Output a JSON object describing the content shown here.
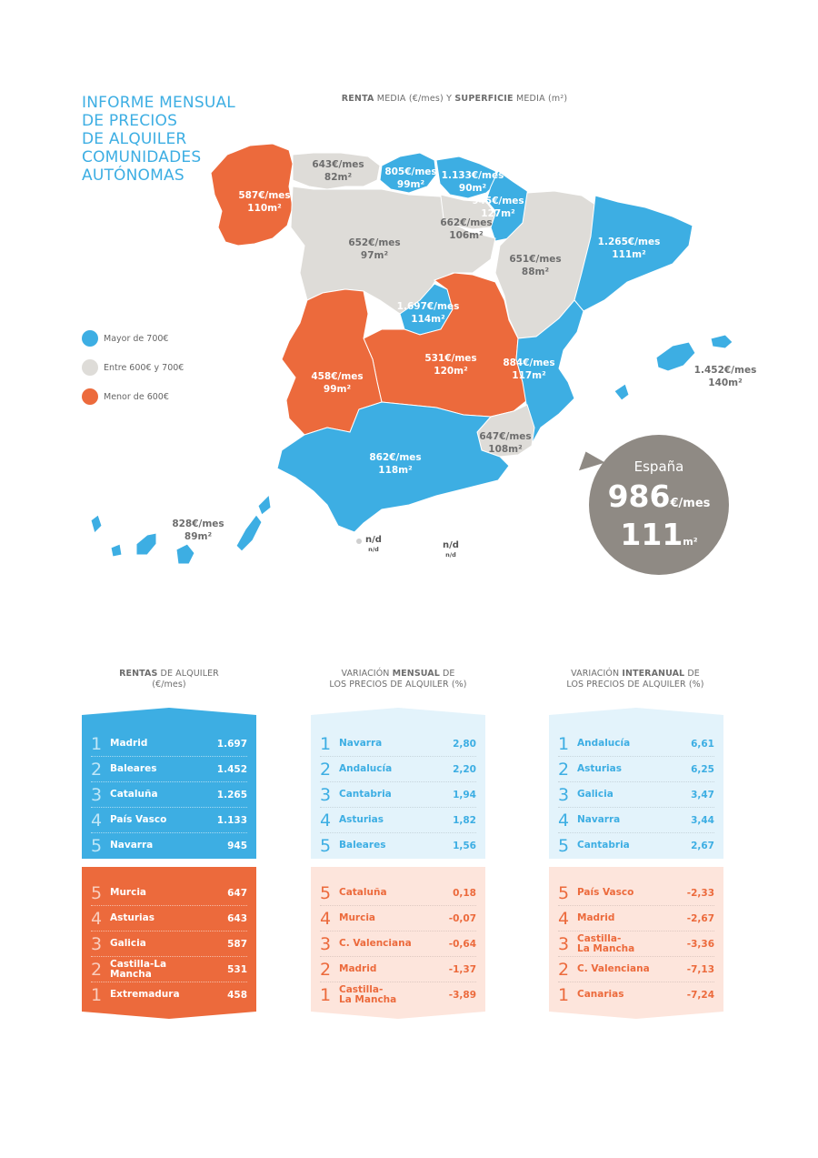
{
  "title_lines": [
    "INFORME MENSUAL",
    "DE PRECIOS",
    "DE ALQUILER",
    "COMUNIDADES",
    "AUTÓNOMAS"
  ],
  "map_heading": {
    "bold1": "RENTA",
    "text1": " MEDIA (€/mes) Y ",
    "bold2": "SUPERFICIE",
    "text2": " MEDIA (m²)"
  },
  "colors": {
    "blue": "#3daee3",
    "grey": "#dedcd8",
    "orange": "#ec6a3c",
    "light_blue": "#e3f3fb",
    "light_orange": "#fde5dc",
    "spain_circle": "#8f8a84"
  },
  "legend": [
    {
      "label": "Mayor de 700€"
    },
    {
      "label": "Entre 600€ y 700€"
    },
    {
      "label": "Menor de 600€"
    }
  ],
  "regions": [
    {
      "rent": "587€/mes",
      "area": "110m²"
    },
    {
      "rent": "643€/mes",
      "area": "82m²"
    },
    {
      "rent": "805€/mes",
      "area": "99m²"
    },
    {
      "rent": "1.133€/mes",
      "area": "90m²"
    },
    {
      "rent": "945€/mes",
      "area": "127m²"
    },
    {
      "rent": "662€/mes",
      "area": "106m²"
    },
    {
      "rent": "652€/mes",
      "area": "97m²"
    },
    {
      "rent": "1.265€/mes",
      "area": "111m²"
    },
    {
      "rent": "651€/mes",
      "area": "88m²"
    },
    {
      "rent": "1.697€/mes",
      "area": "114m²"
    },
    {
      "rent": "531€/mes",
      "area": "120m²"
    },
    {
      "rent": "458€/mes",
      "area": "99m²"
    },
    {
      "rent": "884€/mes",
      "area": "117m²"
    },
    {
      "rent": "1.452€/mes",
      "area": "140m²"
    },
    {
      "rent": "647€/mes",
      "area": "108m²"
    },
    {
      "rent": "862€/mes",
      "area": "118m²"
    },
    {
      "rent": "828€/mes",
      "area": "89m²"
    }
  ],
  "nd": [
    {
      "big": "n/d",
      "small": "n/d"
    },
    {
      "big": "n/d",
      "small": "n/d"
    }
  ],
  "spain": {
    "name": "España",
    "rent": "986",
    "rent_unit": "€/mes",
    "area": "111",
    "area_unit": "m²"
  },
  "columns": [
    {
      "title_line1_pre": "",
      "title_line1_bold": "RENTAS",
      "title_line1_post": " DE ALQUILER",
      "title_line2": "(€/mes)",
      "top": [
        {
          "rank": "1",
          "name": "Madrid",
          "value": "1.697"
        },
        {
          "rank": "2",
          "name": "Baleares",
          "value": "1.452"
        },
        {
          "rank": "3",
          "name": "Cataluña",
          "value": "1.265"
        },
        {
          "rank": "4",
          "name": "País Vasco",
          "value": "1.133"
        },
        {
          "rank": "5",
          "name": "Navarra",
          "value": "945"
        }
      ],
      "bottom": [
        {
          "rank": "5",
          "name": "Murcia",
          "value": "647"
        },
        {
          "rank": "4",
          "name": "Asturias",
          "value": "643"
        },
        {
          "rank": "3",
          "name": "Galicia",
          "value": "587"
        },
        {
          "rank": "2",
          "name": "Castilla-La Mancha",
          "value": "531"
        },
        {
          "rank": "1",
          "name": "Extremadura",
          "value": "458"
        }
      ]
    },
    {
      "title_line1_pre": "VARIACIÓN ",
      "title_line1_bold": "MENSUAL",
      "title_line1_post": " DE",
      "title_line2": "LOS PRECIOS DE ALQUILER (%)",
      "top": [
        {
          "rank": "1",
          "name": "Navarra",
          "value": "2,80"
        },
        {
          "rank": "2",
          "name": "Andalucía",
          "value": "2,20"
        },
        {
          "rank": "3",
          "name": "Cantabria",
          "value": "1,94"
        },
        {
          "rank": "4",
          "name": "Asturias",
          "value": "1,82"
        },
        {
          "rank": "5",
          "name": "Baleares",
          "value": "1,56"
        }
      ],
      "bottom": [
        {
          "rank": "5",
          "name": "Cataluña",
          "value": "0,18"
        },
        {
          "rank": "4",
          "name": "Murcia",
          "value": "-0,07"
        },
        {
          "rank": "3",
          "name": "C. Valenciana",
          "value": "-0,64"
        },
        {
          "rank": "2",
          "name": "Madrid",
          "value": "-1,37"
        },
        {
          "rank": "1",
          "name": "Castilla-\nLa Mancha",
          "value": "-3,89"
        }
      ]
    },
    {
      "title_line1_pre": "VARIACIÓN ",
      "title_line1_bold": "INTERANUAL",
      "title_line1_post": " DE",
      "title_line2": "LOS PRECIOS DE ALQUILER (%)",
      "top": [
        {
          "rank": "1",
          "name": "Andalucía",
          "value": "6,61"
        },
        {
          "rank": "2",
          "name": "Asturias",
          "value": "6,25"
        },
        {
          "rank": "3",
          "name": "Galicia",
          "value": "3,47"
        },
        {
          "rank": "4",
          "name": "Navarra",
          "value": "3,44"
        },
        {
          "rank": "5",
          "name": "Cantabria",
          "value": "2,67"
        }
      ],
      "bottom": [
        {
          "rank": "5",
          "name": "País Vasco",
          "value": "-2,33"
        },
        {
          "rank": "4",
          "name": "Madrid",
          "value": "-2,67"
        },
        {
          "rank": "3",
          "name": "Castilla-\nLa Mancha",
          "value": "-3,36"
        },
        {
          "rank": "2",
          "name": "C. Valenciana",
          "value": "-7,13"
        },
        {
          "rank": "1",
          "name": "Canarias",
          "value": "-7,24"
        }
      ]
    }
  ]
}
